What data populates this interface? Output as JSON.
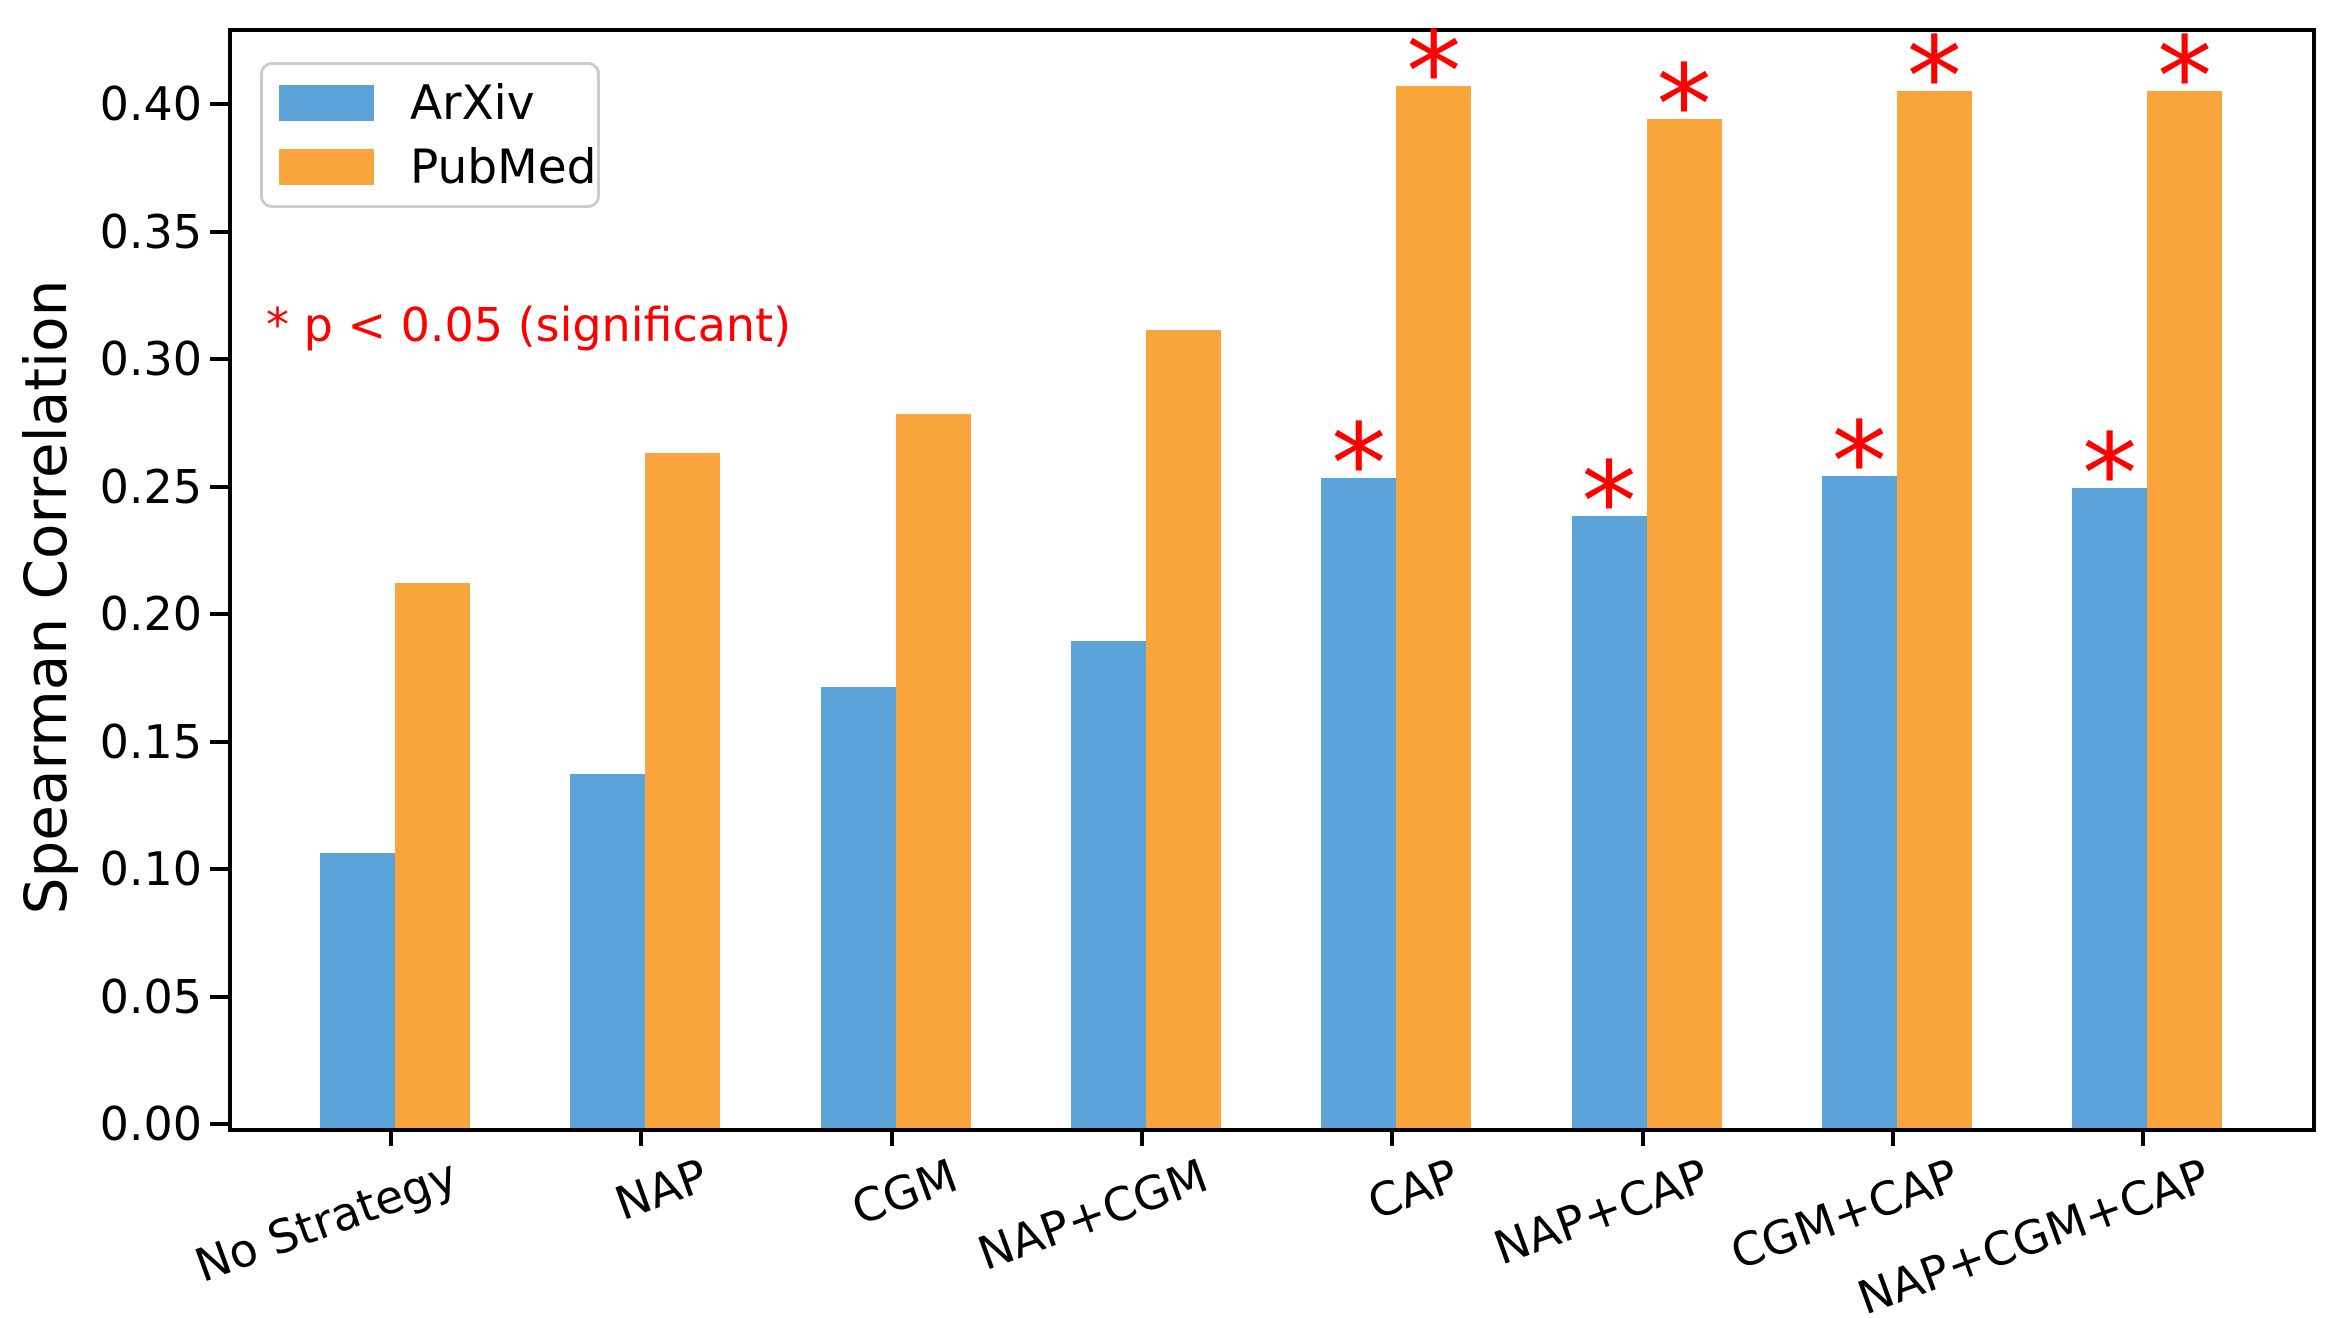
{
  "chart_data": {
    "type": "bar",
    "title": "",
    "xlabel": "",
    "ylabel": "Spearman Correlation",
    "categories": [
      "No Strategy",
      "NAP",
      "CGM",
      "NAP+CGM",
      "CAP",
      "NAP+CAP",
      "CGM+CAP",
      "NAP+CGM+CAP"
    ],
    "series": [
      {
        "name": "ArXiv",
        "color": "#5BA3D9",
        "values": [
          0.108,
          0.139,
          0.173,
          0.191,
          0.255,
          0.24,
          0.256,
          0.251
        ],
        "significant": [
          false,
          false,
          false,
          false,
          true,
          true,
          true,
          true
        ]
      },
      {
        "name": "PubMed",
        "color": "#FAA43C",
        "values": [
          0.214,
          0.265,
          0.28,
          0.313,
          0.409,
          0.396,
          0.407,
          0.407
        ],
        "significant": [
          false,
          false,
          false,
          false,
          true,
          true,
          true,
          true
        ]
      }
    ],
    "ylim": [
      0,
      0.43
    ],
    "ytick_labels": [
      "0.00",
      "0.05",
      "0.10",
      "0.15",
      "0.20",
      "0.25",
      "0.30",
      "0.35",
      "0.40"
    ],
    "ytick_values": [
      0.0,
      0.05,
      0.1,
      0.15,
      0.2,
      0.25,
      0.3,
      0.35,
      0.4
    ],
    "legend": {
      "position": "upper left",
      "entries": [
        "ArXiv",
        "PubMed"
      ]
    },
    "annotation": {
      "text": "* p < 0.05 (significant)",
      "color": "#FF0000"
    },
    "significance_marker": "*",
    "significance_marker_color": "#FF0000",
    "grid": false
  }
}
